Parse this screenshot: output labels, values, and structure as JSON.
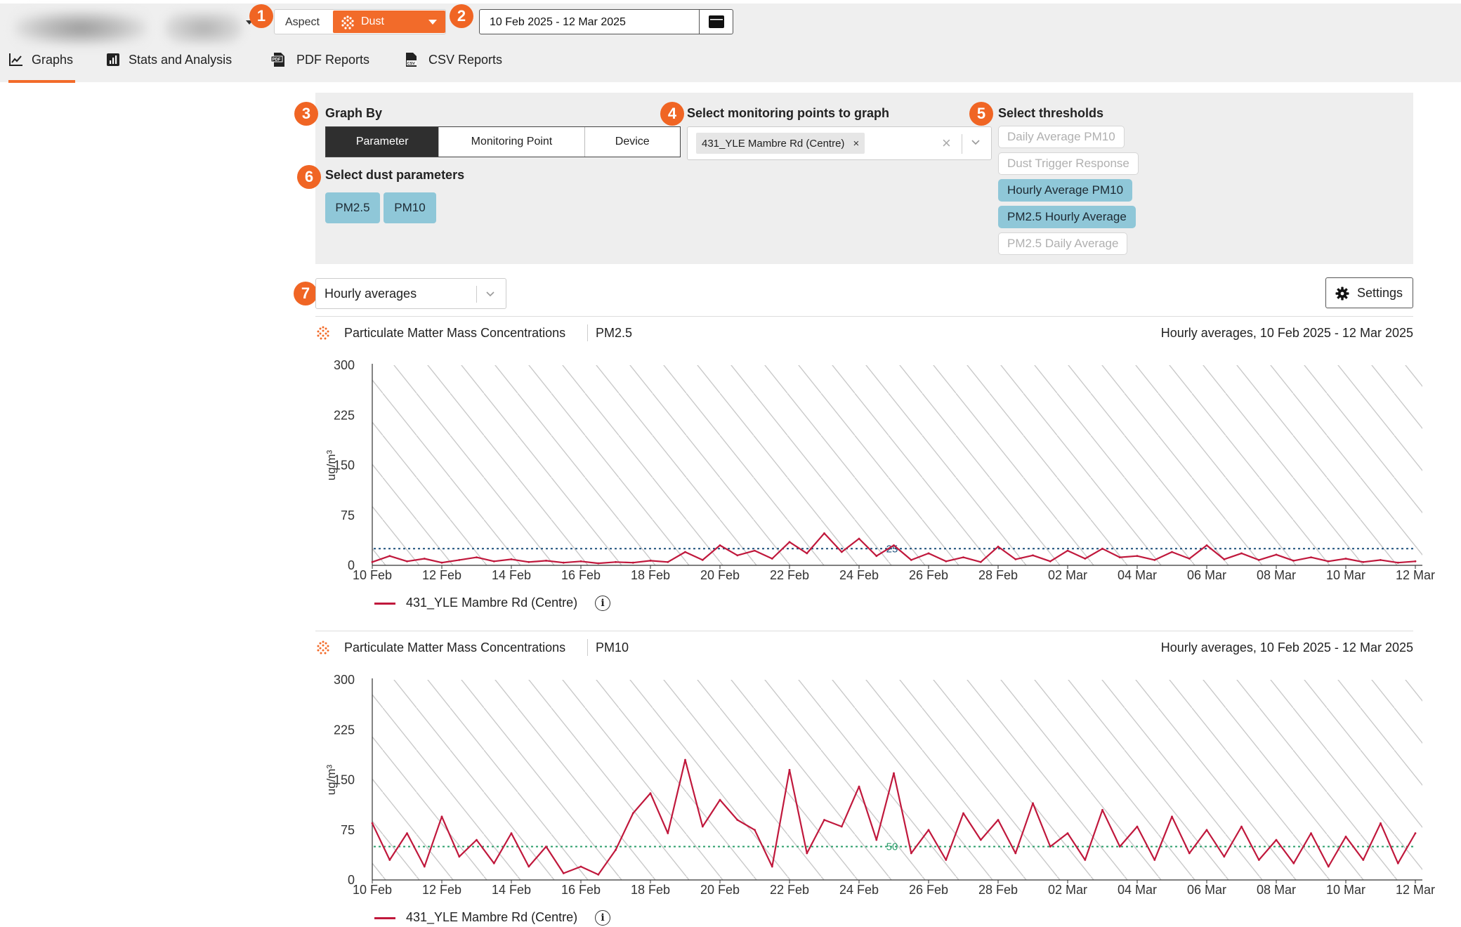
{
  "header": {
    "aspect_label": "Aspect",
    "aspect_value": "Dust",
    "date_range": "10 Feb 2025 - 12 Mar 2025"
  },
  "badges": [
    "1",
    "2",
    "3",
    "4",
    "5",
    "6",
    "7"
  ],
  "tabs": [
    {
      "label": "Graphs",
      "icon": "line-chart-icon",
      "active": true
    },
    {
      "label": "Stats and Analysis",
      "icon": "bar-chart-icon",
      "active": false
    },
    {
      "label": "PDF Reports",
      "icon": "pdf-file-icon",
      "active": false
    },
    {
      "label": "CSV Reports",
      "icon": "csv-file-icon",
      "active": false
    }
  ],
  "graph_by": {
    "title": "Graph By",
    "options": [
      "Parameter",
      "Monitoring Point",
      "Device"
    ],
    "selected": "Parameter"
  },
  "dust_params": {
    "title": "Select dust parameters",
    "chips": [
      "PM2.5",
      "PM10"
    ]
  },
  "monitoring": {
    "title": "Select monitoring points to graph",
    "selected_tag": "431_YLE Mambre Rd (Centre)",
    "tag_remove": "×",
    "clear": "×"
  },
  "thresholds": {
    "title": "Select thresholds",
    "items": [
      {
        "label": "Daily Average PM10",
        "on": false
      },
      {
        "label": "Dust Trigger Response",
        "on": false
      },
      {
        "label": "Hourly Average PM10",
        "on": true
      },
      {
        "label": "PM2.5 Hourly Average",
        "on": true
      },
      {
        "label": "PM2.5 Daily Average",
        "on": false
      }
    ]
  },
  "averaging": {
    "value": "Hourly averages"
  },
  "settings_label": "Settings",
  "colors": {
    "accent": "#f26b2a",
    "series": "#c0183c",
    "chip": "#8fc7d8",
    "threshold_pm25": "#1b4f7a",
    "threshold_pm10": "#2a9d6a"
  },
  "charts_meta": [
    {
      "title": "Particulate Matter Mass Concentrations",
      "param": "PM2.5",
      "range": "Hourly averages, 10 Feb 2025 - 12 Mar 2025",
      "legend": "431_YLE Mambre Rd (Centre)",
      "info": "i"
    },
    {
      "title": "Particulate Matter Mass Concentrations",
      "param": "PM10",
      "range": "Hourly averages, 10 Feb 2025 - 12 Mar 2025",
      "legend": "431_YLE Mambre Rd (Centre)",
      "info": "i"
    }
  ],
  "chart_data": [
    {
      "type": "line",
      "title": "Particulate Matter Mass Concentrations | PM2.5",
      "ylabel": "ug/m³",
      "ylim": [
        0,
        300
      ],
      "yticks": [
        0,
        75,
        150,
        225,
        300
      ],
      "xticks": [
        "10 Feb",
        "12 Feb",
        "14 Feb",
        "16 Feb",
        "18 Feb",
        "20 Feb",
        "22 Feb",
        "24 Feb",
        "26 Feb",
        "28 Feb",
        "02 Mar",
        "04 Mar",
        "06 Mar",
        "08 Mar",
        "10 Mar",
        "12 Mar"
      ],
      "threshold": {
        "value": 25,
        "label": "25"
      },
      "series": [
        {
          "name": "431_YLE Mambre Rd (Centre)",
          "x_day": [
            0,
            0.5,
            1,
            1.5,
            2,
            2.5,
            3,
            3.5,
            4,
            4.5,
            5,
            5.5,
            6,
            6.5,
            7,
            7.5,
            8,
            8.5,
            9,
            9.5,
            10,
            10.5,
            11,
            11.5,
            12,
            12.5,
            13,
            13.5,
            14,
            14.5,
            15,
            15.5,
            16,
            16.5,
            17,
            17.5,
            18,
            18.5,
            19,
            19.5,
            20,
            20.5,
            21,
            21.5,
            22,
            22.5,
            23,
            23.5,
            24,
            24.5,
            25,
            25.5,
            26,
            26.5,
            27,
            27.5,
            28,
            28.5,
            29,
            29.5,
            30
          ],
          "values": [
            5,
            14,
            6,
            10,
            4,
            8,
            12,
            6,
            9,
            5,
            7,
            4,
            6,
            3,
            5,
            4,
            7,
            5,
            20,
            8,
            30,
            15,
            22,
            10,
            35,
            18,
            48,
            20,
            40,
            14,
            30,
            8,
            18,
            6,
            12,
            5,
            28,
            9,
            15,
            6,
            22,
            10,
            25,
            12,
            14,
            8,
            20,
            10,
            30,
            9,
            18,
            8,
            16,
            7,
            12,
            6,
            10,
            5,
            8,
            4,
            6
          ]
        }
      ]
    },
    {
      "type": "line",
      "title": "Particulate Matter Mass Concentrations | PM10",
      "ylabel": "ug/m³",
      "ylim": [
        0,
        300
      ],
      "yticks": [
        0,
        75,
        150,
        225,
        300
      ],
      "xticks": [
        "10 Feb",
        "12 Feb",
        "14 Feb",
        "16 Feb",
        "18 Feb",
        "20 Feb",
        "22 Feb",
        "24 Feb",
        "26 Feb",
        "28 Feb",
        "02 Mar",
        "04 Mar",
        "06 Mar",
        "08 Mar",
        "10 Mar",
        "12 Mar"
      ],
      "threshold": {
        "value": 50,
        "label": "50"
      },
      "series": [
        {
          "name": "431_YLE Mambre Rd (Centre)",
          "x_day": [
            0,
            0.5,
            1,
            1.5,
            2,
            2.5,
            3,
            3.5,
            4,
            4.5,
            5,
            5.5,
            6,
            6.5,
            7,
            7.5,
            8,
            8.5,
            9,
            9.5,
            10,
            10.5,
            11,
            11.5,
            12,
            12.5,
            13,
            13.5,
            14,
            14.5,
            15,
            15.5,
            16,
            16.5,
            17,
            17.5,
            18,
            18.5,
            19,
            19.5,
            20,
            20.5,
            21,
            21.5,
            22,
            22.5,
            23,
            23.5,
            24,
            24.5,
            25,
            25.5,
            26,
            26.5,
            27,
            27.5,
            28,
            28.5,
            29,
            29.5,
            30
          ],
          "values": [
            85,
            30,
            70,
            20,
            95,
            35,
            60,
            25,
            70,
            20,
            50,
            10,
            20,
            8,
            45,
            100,
            130,
            70,
            180,
            80,
            120,
            90,
            75,
            20,
            165,
            40,
            90,
            80,
            140,
            60,
            160,
            40,
            75,
            30,
            100,
            60,
            90,
            40,
            115,
            50,
            70,
            30,
            105,
            50,
            80,
            30,
            95,
            40,
            75,
            35,
            80,
            30,
            60,
            25,
            70,
            20,
            65,
            30,
            85,
            25,
            70
          ]
        }
      ]
    }
  ]
}
